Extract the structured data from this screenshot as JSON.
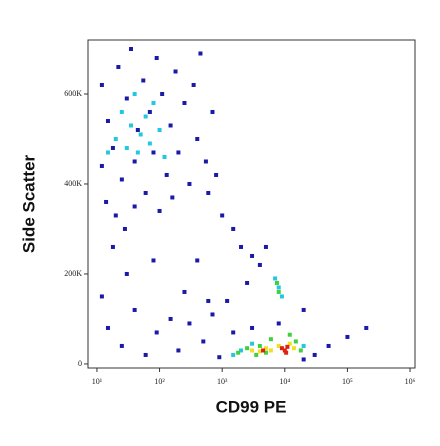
{
  "chart_data": {
    "type": "scatter",
    "xlabel": "CD99 PE",
    "ylabel": "Side Scatter",
    "xscale": "log",
    "xlim": [
      7.2,
      1200000
    ],
    "xticks": [
      {
        "value": 10,
        "label": "10¹"
      },
      {
        "value": 100,
        "label": "10²"
      },
      {
        "value": 1000,
        "label": "10³"
      },
      {
        "value": 10000,
        "label": "10⁴"
      },
      {
        "value": 100000,
        "label": "10⁵"
      },
      {
        "value": 1000000,
        "label": "10⁶"
      }
    ],
    "ylim": [
      -9000,
      720000
    ],
    "yticks": [
      0,
      {
        "value": 200000,
        "label": "200K"
      },
      {
        "value": 400000,
        "label": "400K"
      },
      {
        "value": 600000,
        "label": "600K"
      }
    ],
    "series": [
      {
        "color": "#1a1aa8",
        "x": [
          12,
          15,
          18,
          22,
          25,
          30,
          35,
          40,
          45,
          55,
          60,
          70,
          80,
          90,
          110,
          130,
          150,
          180,
          200,
          250,
          300,
          350,
          400,
          450,
          550,
          700,
          12,
          14,
          20,
          28,
          40,
          100,
          160,
          600,
          800,
          1000,
          1500,
          2000,
          3000,
          4000,
          2500,
          5000,
          1200,
          15,
          25,
          40,
          60,
          90,
          150,
          200,
          300,
          500,
          700,
          900,
          1500,
          30,
          80,
          20000,
          50000,
          100000,
          200000,
          12,
          18,
          250,
          400,
          20000,
          30000,
          8000,
          3000,
          600
        ],
        "values": [
          620000,
          540000,
          480000,
          660000,
          410000,
          590000,
          700000,
          450000,
          520000,
          630000,
          380000,
          560000,
          470000,
          680000,
          600000,
          420000,
          530000,
          650000,
          470000,
          580000,
          400000,
          620000,
          500000,
          690000,
          450000,
          560000,
          440000,
          360000,
          330000,
          300000,
          350000,
          340000,
          370000,
          380000,
          420000,
          330000,
          300000,
          260000,
          240000,
          220000,
          180000,
          260000,
          140000,
          80000,
          40000,
          120000,
          20000,
          70000,
          100000,
          30000,
          90000,
          50000,
          110000,
          15000,
          70000,
          200000,
          230000,
          120000,
          40000,
          60000,
          80000,
          150000,
          260000,
          160000,
          230000,
          10000,
          20000,
          90000,
          80000,
          140000
        ]
      },
      {
        "color": "#22c8e0",
        "x": [
          20,
          25,
          30,
          35,
          40,
          45,
          50,
          60,
          70,
          80,
          100,
          120,
          15,
          8000,
          7000,
          9000,
          2000,
          3000,
          20000,
          1500
        ],
        "values": [
          500000,
          560000,
          480000,
          530000,
          600000,
          470000,
          510000,
          550000,
          490000,
          580000,
          520000,
          460000,
          470000,
          170000,
          190000,
          150000,
          30000,
          45000,
          40000,
          20000
        ]
      },
      {
        "color": "#3cd23c",
        "x": [
          7500,
          8000,
          2500,
          3500,
          4000,
          5000,
          15000,
          18000,
          1800,
          6000,
          12000
        ],
        "values": [
          180000,
          160000,
          35000,
          20000,
          40000,
          25000,
          50000,
          30000,
          25000,
          55000,
          65000
        ]
      },
      {
        "color": "#f0e020",
        "x": [
          3000,
          4000,
          5000,
          6000,
          12000,
          14000,
          8000
        ],
        "values": [
          30000,
          28000,
          35000,
          30000,
          45000,
          35000,
          40000
        ]
      },
      {
        "color": "#e02010",
        "x": [
          9000,
          10000,
          11000,
          10500,
          4500
        ],
        "values": [
          35000,
          30000,
          38000,
          25000,
          30000
        ]
      }
    ]
  }
}
